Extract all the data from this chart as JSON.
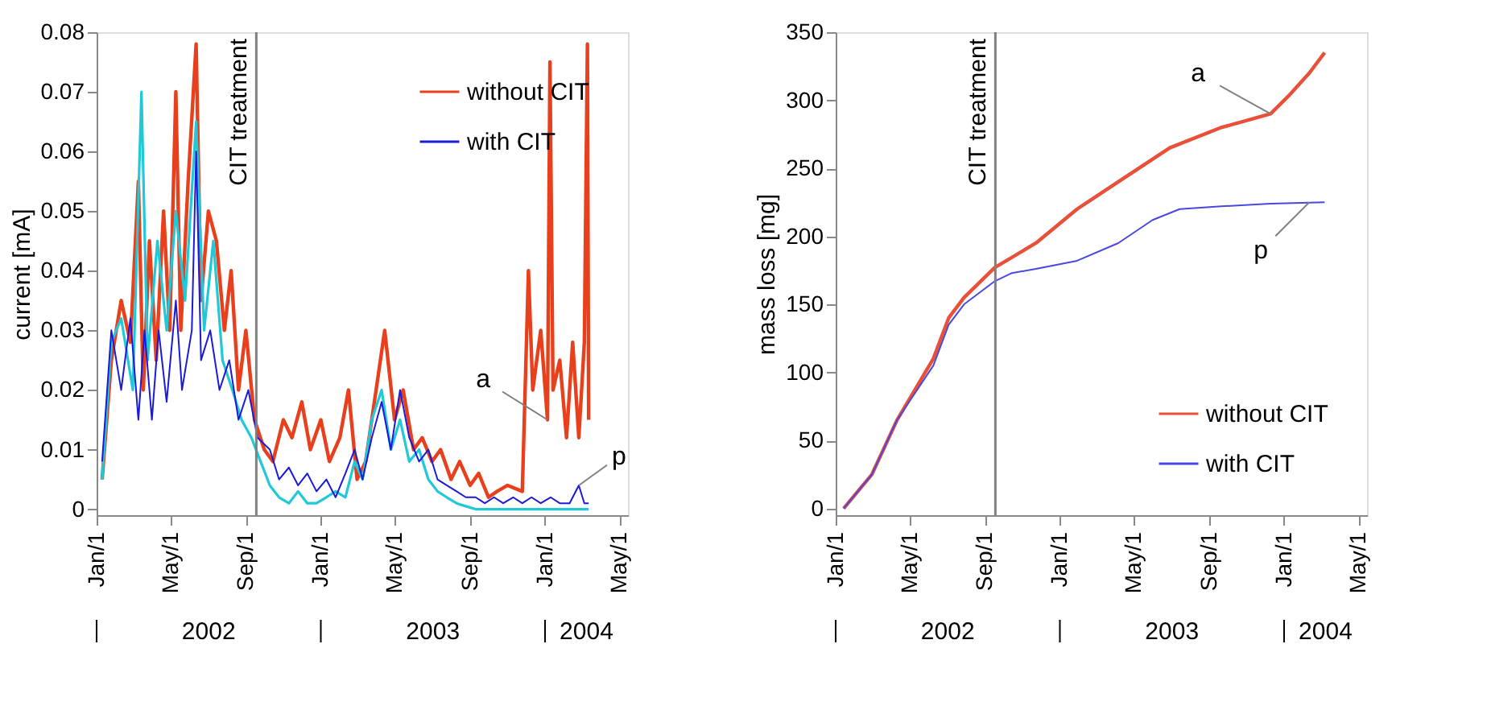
{
  "chart_data": [
    {
      "type": "line",
      "ylabel": "current [mA]",
      "legend": "top right",
      "xlim": [
        "2002-01-01",
        "2004-05-15"
      ],
      "ylim": [
        -0.001,
        0.08
      ],
      "xticks": [
        {
          "value": "2002-01-01",
          "label": "Jan/1"
        },
        {
          "value": "2002-05-01",
          "label": "May/1"
        },
        {
          "value": "2002-09-01",
          "label": "Sep/1"
        },
        {
          "value": "2003-01-01",
          "label": "Jan/1"
        },
        {
          "value": "2003-05-01",
          "label": "May/1"
        },
        {
          "value": "2003-09-01",
          "label": "Sep/1"
        },
        {
          "value": "2004-01-01",
          "label": "Jan/1"
        },
        {
          "value": "2004-05-01",
          "label": "May/1"
        }
      ],
      "yticks": [
        0,
        0.01,
        0.02,
        0.03,
        0.04,
        0.05,
        0.06,
        0.07,
        0.08
      ],
      "ref_lines": [
        {
          "axis": "x",
          "value": "2002-09-18",
          "label": "CIT treatment",
          "color": "#808080"
        }
      ],
      "annotations": [
        "2002",
        "2003",
        "2004",
        {
          "text": "a",
          "x": "2004-01-05",
          "y": 0.015
        },
        {
          "text": "p",
          "x": "2004-02-25",
          "y": 0.004
        }
      ],
      "series": [
        {
          "name": "without CIT",
          "color": "#e8401c",
          "x": [
            "2002-01-10",
            "2002-01-25",
            "2002-02-10",
            "2002-02-25",
            "2002-03-10",
            "2002-03-18",
            "2002-03-28",
            "2002-04-08",
            "2002-04-20",
            "2002-04-30",
            "2002-05-10",
            "2002-05-18",
            "2002-05-30",
            "2002-06-12",
            "2002-06-20",
            "2002-07-02",
            "2002-07-15",
            "2002-07-28",
            "2002-08-08",
            "2002-08-20",
            "2002-09-01",
            "2002-09-15",
            "2002-10-01",
            "2002-10-15",
            "2002-11-01",
            "2002-11-15",
            "2002-12-01",
            "2002-12-15",
            "2003-01-01",
            "2003-01-15",
            "2003-02-01",
            "2003-02-15",
            "2003-03-01",
            "2003-03-15",
            "2003-04-01",
            "2003-04-15",
            "2003-05-01",
            "2003-05-15",
            "2003-06-01",
            "2003-06-15",
            "2003-07-01",
            "2003-07-15",
            "2003-08-01",
            "2003-08-15",
            "2003-09-01",
            "2003-09-15",
            "2003-10-01",
            "2003-10-15",
            "2003-11-01",
            "2003-11-25",
            "2003-12-05",
            "2003-12-12",
            "2003-12-25",
            "2004-01-05",
            "2004-01-09",
            "2004-01-14",
            "2004-01-25",
            "2004-02-05",
            "2004-02-15",
            "2004-02-25",
            "2004-03-05",
            "2004-03-10",
            "2004-03-12"
          ],
          "values": [
            0.005,
            0.025,
            0.035,
            0.028,
            0.055,
            0.02,
            0.045,
            0.025,
            0.05,
            0.03,
            0.07,
            0.03,
            0.055,
            0.078,
            0.035,
            0.05,
            0.045,
            0.03,
            0.04,
            0.02,
            0.03,
            0.015,
            0.01,
            0.008,
            0.015,
            0.012,
            0.018,
            0.01,
            0.015,
            0.008,
            0.012,
            0.02,
            0.005,
            0.008,
            0.02,
            0.03,
            0.015,
            0.02,
            0.01,
            0.012,
            0.008,
            0.01,
            0.005,
            0.008,
            0.004,
            0.006,
            0.002,
            0.003,
            0.004,
            0.003,
            0.04,
            0.02,
            0.03,
            0.015,
            0.075,
            0.02,
            0.025,
            0.012,
            0.028,
            0.012,
            0.028,
            0.078,
            0.015
          ]
        },
        {
          "color": "#20c8d8",
          "x": [
            "2002-01-10",
            "2002-01-25",
            "2002-02-10",
            "2002-03-01",
            "2002-03-15",
            "2002-03-25",
            "2002-04-10",
            "2002-04-25",
            "2002-05-10",
            "2002-05-25",
            "2002-06-12",
            "2002-06-25",
            "2002-07-10",
            "2002-07-25",
            "2002-08-10",
            "2002-08-25",
            "2002-09-10",
            "2002-09-25",
            "2002-10-10",
            "2002-10-25",
            "2002-11-10",
            "2002-11-25",
            "2002-12-10",
            "2002-12-25",
            "2003-01-10",
            "2003-01-25",
            "2003-02-10",
            "2003-02-25",
            "2003-03-10",
            "2003-03-25",
            "2003-04-10",
            "2003-04-25",
            "2003-05-10",
            "2003-05-25",
            "2003-06-10",
            "2003-06-25",
            "2003-07-10",
            "2003-07-25",
            "2003-08-10",
            "2003-08-25",
            "2003-09-10",
            "2003-10-10",
            "2003-11-10",
            "2003-12-10",
            "2004-01-10",
            "2004-02-10",
            "2004-03-12"
          ],
          "values": [
            0.005,
            0.028,
            0.032,
            0.02,
            0.07,
            0.025,
            0.045,
            0.03,
            0.05,
            0.035,
            0.065,
            0.03,
            0.045,
            0.025,
            0.02,
            0.015,
            0.012,
            0.008,
            0.004,
            0.002,
            0.001,
            0.003,
            0.001,
            0.001,
            0.002,
            0.003,
            0.002,
            0.008,
            0.005,
            0.015,
            0.02,
            0.01,
            0.015,
            0.008,
            0.01,
            0.005,
            0.003,
            0.002,
            0.001,
            0.0005,
            0,
            0,
            0,
            0,
            0,
            0,
            0
          ]
        },
        {
          "name": "with CIT",
          "color": "#1a1ad8",
          "x": [
            "2002-01-10",
            "2002-01-25",
            "2002-02-10",
            "2002-02-25",
            "2002-03-10",
            "2002-03-20",
            "2002-04-01",
            "2002-04-12",
            "2002-04-25",
            "2002-05-10",
            "2002-05-20",
            "2002-06-05",
            "2002-06-12",
            "2002-06-20",
            "2002-07-05",
            "2002-07-20",
            "2002-08-05",
            "2002-08-20",
            "2002-09-05",
            "2002-09-20",
            "2002-10-10",
            "2002-10-25",
            "2002-11-10",
            "2002-11-25",
            "2002-12-10",
            "2002-12-25",
            "2003-01-10",
            "2003-01-25",
            "2003-02-10",
            "2003-02-25",
            "2003-03-10",
            "2003-03-25",
            "2003-04-10",
            "2003-04-25",
            "2003-05-10",
            "2003-05-25",
            "2003-06-10",
            "2003-06-25",
            "2003-07-10",
            "2003-07-25",
            "2003-08-10",
            "2003-08-25",
            "2003-09-10",
            "2003-09-25",
            "2003-10-10",
            "2003-10-25",
            "2003-11-10",
            "2003-11-25",
            "2003-12-10",
            "2003-12-25",
            "2004-01-10",
            "2004-01-25",
            "2004-02-10",
            "2004-02-25",
            "2004-03-05",
            "2004-03-12"
          ],
          "values": [
            0.008,
            0.03,
            0.02,
            0.032,
            0.015,
            0.03,
            0.015,
            0.03,
            0.018,
            0.035,
            0.02,
            0.03,
            0.06,
            0.025,
            0.03,
            0.02,
            0.025,
            0.015,
            0.02,
            0.012,
            0.01,
            0.005,
            0.007,
            0.004,
            0.006,
            0.003,
            0.005,
            0.002,
            0.006,
            0.01,
            0.005,
            0.012,
            0.018,
            0.01,
            0.02,
            0.012,
            0.008,
            0.01,
            0.005,
            0.004,
            0.003,
            0.002,
            0.002,
            0.001,
            0.002,
            0.001,
            0.002,
            0.001,
            0.002,
            0.001,
            0.002,
            0.001,
            0.001,
            0.004,
            0.001,
            0.001
          ]
        }
      ]
    },
    {
      "type": "line",
      "ylabel": "mass loss [mg]",
      "legend": "bottom right",
      "xlim": [
        "2002-01-01",
        "2004-05-15"
      ],
      "ylim": [
        -5,
        350
      ],
      "xticks": [
        {
          "value": "2002-01-01",
          "label": "Jan/1"
        },
        {
          "value": "2002-05-01",
          "label": "May/1"
        },
        {
          "value": "2002-09-01",
          "label": "Sep/1"
        },
        {
          "value": "2003-01-01",
          "label": "Jan/1"
        },
        {
          "value": "2003-05-01",
          "label": "May/1"
        },
        {
          "value": "2003-09-01",
          "label": "Sep/1"
        },
        {
          "value": "2004-01-01",
          "label": "Jan/1"
        },
        {
          "value": "2004-05-01",
          "label": "May/1"
        }
      ],
      "yticks": [
        0,
        50,
        100,
        150,
        200,
        250,
        300,
        350
      ],
      "ref_lines": [
        {
          "axis": "x",
          "value": "2002-09-18",
          "label": "CIT treatment",
          "color": "#808080"
        }
      ],
      "annotations": [
        "2002",
        "2003",
        "2004",
        {
          "text": "a",
          "x": "2003-12-10",
          "y": 290
        },
        {
          "text": "p",
          "x": "2004-02-11",
          "y": 225
        }
      ],
      "series": [
        {
          "name": "without CIT",
          "color": "#e8503a",
          "x": [
            "2002-01-14",
            "2002-03-01",
            "2002-04-11",
            "2002-06-09",
            "2002-07-04",
            "2002-07-29",
            "2002-09-17",
            "2002-11-23",
            "2003-01-29",
            "2003-04-06",
            "2003-06-29",
            "2003-09-21",
            "2003-12-10",
            "2004-01-08",
            "2004-02-11",
            "2004-03-07"
          ],
          "values": [
            0,
            25,
            65,
            110,
            140,
            155,
            177,
            195,
            220,
            240,
            265,
            280,
            290,
            303,
            320,
            335
          ]
        },
        {
          "name": "with CIT",
          "color": "#4848e0",
          "x": [
            "2002-01-14",
            "2002-03-01",
            "2002-04-11",
            "2002-06-09",
            "2002-07-04",
            "2002-07-29",
            "2002-09-17",
            "2002-10-15",
            "2002-11-23",
            "2003-01-29",
            "2003-04-06",
            "2003-06-01",
            "2003-07-15",
            "2003-09-21",
            "2003-12-10",
            "2004-03-07"
          ],
          "values": [
            0,
            25,
            65,
            105,
            135,
            150,
            167,
            173,
            176,
            182,
            195,
            212,
            220,
            222,
            224,
            225
          ]
        }
      ]
    }
  ]
}
